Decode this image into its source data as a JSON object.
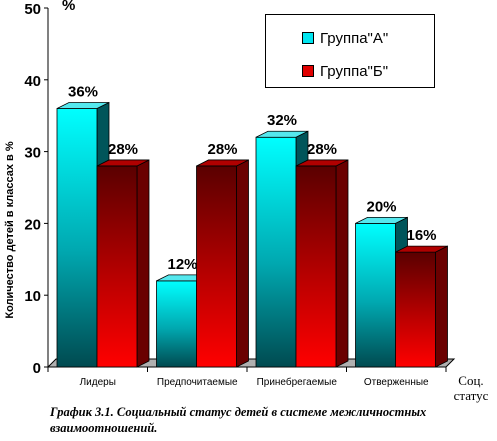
{
  "chart_data": {
    "type": "bar",
    "ylabel": "Количество детей в классах в %",
    "unit_label": "%",
    "xlabel": "Соц. статус",
    "ylim": [
      0,
      50
    ],
    "yticks": [
      0,
      10,
      20,
      30,
      40,
      50
    ],
    "categories": [
      "Лидеры",
      "Предпочитаемые",
      "Принебрегаемые",
      "Отверженные"
    ],
    "series": [
      {
        "name": "Группа\"А\"",
        "values": [
          36,
          12,
          32,
          20
        ],
        "labels": [
          "36%",
          "12%",
          "32%",
          "20%"
        ],
        "color": "#00e5f0"
      },
      {
        "name": "Группа\"Б\"",
        "values": [
          28,
          28,
          28,
          16
        ],
        "labels": [
          "28%",
          "28%",
          "28%",
          "16%"
        ],
        "color": "#e00000"
      }
    ],
    "legend": "top-right",
    "grid": false
  },
  "caption": "График 3.1. Социальный статус детей в системе межличностных взаимоотношений."
}
